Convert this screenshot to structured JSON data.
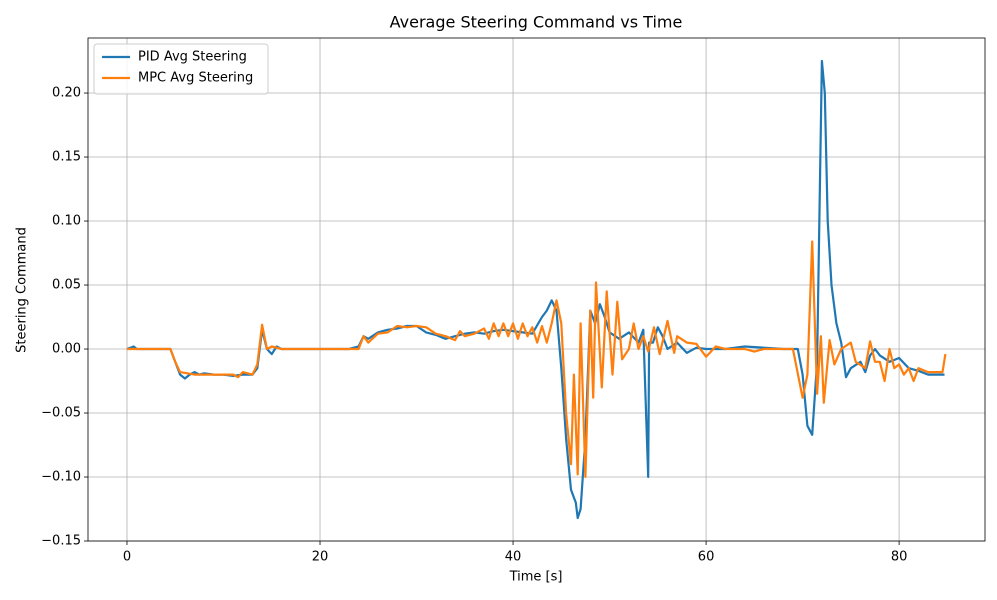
{
  "chart_data": {
    "type": "line",
    "title": "Average Steering Command vs Time",
    "x_label": "Time [s]",
    "y_label": "Steering Command",
    "xlim": [
      -4.04,
      88.9
    ],
    "ylim": [
      -0.15,
      0.243
    ],
    "xticks": [
      0,
      20,
      40,
      60,
      80
    ],
    "yticks": [
      {
        "value": -0.15,
        "label": "−0.15"
      },
      {
        "value": -0.1,
        "label": "−0.10"
      },
      {
        "value": -0.05,
        "label": "−0.05"
      },
      {
        "value": 0,
        "label": "0.00"
      },
      {
        "value": 0.05,
        "label": "0.05"
      },
      {
        "value": 0.1,
        "label": "0.10"
      },
      {
        "value": 0.15,
        "label": "0.15"
      },
      {
        "value": 0.2,
        "label": "0.20"
      }
    ],
    "grid": true,
    "legend": "upper left",
    "series": [
      {
        "name": "PID Avg Steering",
        "color": "#1f77b4",
        "x": [
          0,
          0.7,
          1,
          4.5,
          5,
          5.5,
          6,
          6.5,
          7,
          7.5,
          8,
          9,
          10,
          11,
          12,
          13,
          13.5,
          14,
          14.5,
          15,
          15.5,
          16,
          20,
          23,
          24,
          24.5,
          25,
          26,
          27,
          28,
          29,
          30,
          31,
          32,
          33,
          34,
          35,
          36,
          37,
          38,
          39,
          40,
          41,
          42,
          43,
          43.5,
          44,
          44.5,
          45,
          45.5,
          46,
          46.5,
          46.7,
          47,
          47.5,
          48,
          48.5,
          49,
          49.5,
          50,
          51,
          52,
          53,
          53.5,
          54,
          54.1,
          54.5,
          55,
          55.5,
          56,
          57,
          58,
          59,
          60,
          62,
          64,
          66,
          68,
          69.5,
          70,
          70.5,
          71,
          71.5,
          72,
          72.3,
          72.6,
          73,
          73.5,
          74,
          74.5,
          75,
          76,
          76.5,
          77,
          77.5,
          78,
          79,
          80,
          81,
          82,
          83,
          84,
          84.7
        ],
        "values": [
          0,
          0.002,
          0,
          0,
          -0.01,
          -0.02,
          -0.023,
          -0.02,
          -0.018,
          -0.02,
          -0.019,
          -0.02,
          -0.02,
          -0.021,
          -0.02,
          -0.02,
          -0.015,
          0.015,
          0,
          -0.004,
          0.002,
          0,
          0,
          0,
          0.002,
          0.01,
          0.008,
          0.013,
          0.015,
          0.016,
          0.018,
          0.018,
          0.013,
          0.011,
          0.008,
          0.01,
          0.012,
          0.013,
          0.012,
          0.014,
          0.015,
          0.014,
          0.013,
          0.012,
          0.025,
          0.03,
          0.038,
          0.03,
          -0.015,
          -0.07,
          -0.11,
          -0.12,
          -0.132,
          -0.125,
          -0.07,
          0.03,
          0.02,
          0.035,
          0.025,
          0.013,
          0.008,
          0.013,
          0.005,
          0.015,
          -0.1,
          0.005,
          0.005,
          0.017,
          0.01,
          0,
          0.005,
          -0.003,
          0.001,
          0,
          0,
          0.002,
          0.001,
          0,
          0,
          -0.02,
          -0.06,
          -0.067,
          -0.01,
          0.225,
          0.2,
          0.1,
          0.05,
          0.02,
          0.005,
          -0.022,
          -0.015,
          -0.01,
          -0.018,
          -0.005,
          0,
          -0.005,
          -0.01,
          -0.007,
          -0.015,
          -0.017,
          -0.02,
          -0.02,
          -0.02
        ]
      },
      {
        "name": "MPC Avg Steering",
        "color": "#ff7f0e",
        "x": [
          0,
          4.5,
          5,
          5.5,
          7,
          9,
          11,
          11.5,
          12,
          13,
          13.5,
          14,
          14.5,
          15,
          16,
          24,
          24.5,
          25,
          26,
          27,
          28,
          29,
          30,
          31,
          32,
          33,
          34,
          34.5,
          35,
          36,
          37,
          37.5,
          38,
          38.5,
          39,
          39.5,
          40,
          40.5,
          41,
          41.5,
          42,
          42.5,
          43,
          43.5,
          44,
          44.5,
          45,
          45.5,
          46,
          46.3,
          46.7,
          47,
          47.5,
          48,
          48.3,
          48.6,
          49.2,
          49.7,
          50.3,
          50.8,
          51.3,
          52,
          52.5,
          53,
          53.5,
          54,
          54.6,
          55.2,
          56,
          56.7,
          57,
          58,
          59,
          60,
          61,
          62,
          64,
          65,
          66,
          69,
          70,
          70.5,
          71,
          71.5,
          71.9,
          72.2,
          72.8,
          73.3,
          74,
          75,
          75.5,
          76.5,
          77,
          77.5,
          78,
          78.5,
          79,
          79.5,
          80,
          80.5,
          81,
          81.5,
          82,
          83,
          84,
          84.5,
          84.8
        ],
        "values": [
          0,
          0,
          -0.01,
          -0.018,
          -0.02,
          -0.02,
          -0.02,
          -0.022,
          -0.018,
          -0.02,
          -0.012,
          0.019,
          0,
          0.002,
          0,
          0,
          0.01,
          0.005,
          0.012,
          0.013,
          0.018,
          0.017,
          0.018,
          0.017,
          0.012,
          0.01,
          0.007,
          0.014,
          0.01,
          0.012,
          0.016,
          0.008,
          0.02,
          0.01,
          0.02,
          0.01,
          0.02,
          0.008,
          0.02,
          0.01,
          0.017,
          0.005,
          0.018,
          0.005,
          0.02,
          0.038,
          0.02,
          -0.05,
          -0.09,
          -0.02,
          -0.098,
          0.02,
          -0.1,
          0.03,
          -0.038,
          0.052,
          -0.03,
          0.045,
          -0.02,
          0.037,
          -0.008,
          0,
          0.02,
          0,
          0.01,
          -0.002,
          0.017,
          -0.004,
          0.022,
          -0.003,
          0.01,
          0.005,
          0.004,
          -0.006,
          0.002,
          0,
          0,
          -0.002,
          0,
          0,
          -0.038,
          -0.02,
          0.084,
          -0.035,
          0.01,
          -0.042,
          0.007,
          -0.012,
          0,
          0.005,
          -0.01,
          -0.015,
          0.006,
          -0.01,
          -0.01,
          -0.025,
          0,
          -0.015,
          -0.012,
          -0.02,
          -0.015,
          -0.025,
          -0.015,
          -0.018,
          -0.018,
          -0.018,
          -0.004
        ]
      }
    ]
  }
}
